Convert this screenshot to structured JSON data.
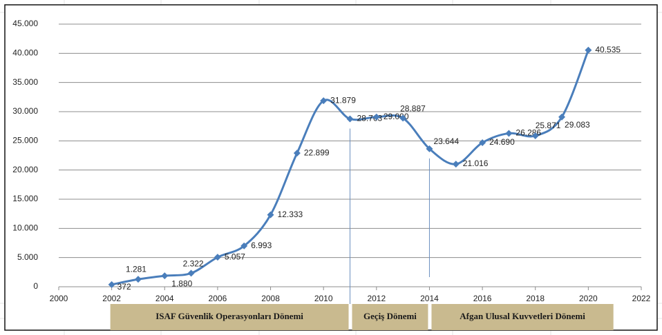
{
  "chart_data": {
    "type": "line",
    "x": [
      2002,
      2003,
      2004,
      2005,
      2006,
      2007,
      2008,
      2009,
      2010,
      2011,
      2012,
      2013,
      2014,
      2015,
      2016,
      2017,
      2018,
      2019,
      2020
    ],
    "series": [
      {
        "color": "#4a7ebb",
        "values": [
          372,
          1281,
          1880,
          2322,
          5057,
          6993,
          12333,
          22899,
          31879,
          28763,
          29090,
          28887,
          23644,
          21016,
          24690,
          26286,
          25871,
          29083,
          40535
        ],
        "value_labels": [
          "372",
          "1.281",
          "1.880",
          "2.322",
          "5.057",
          "6.993",
          "12.333",
          "22.899",
          "31.879",
          "28.763",
          "29.090",
          "28.887",
          "23.644",
          "21.016",
          "24.690",
          "26.286",
          "25.871",
          "29.083",
          "40.535"
        ]
      }
    ],
    "xlim": [
      2000,
      2022
    ],
    "xticks": [
      2000,
      2002,
      2004,
      2006,
      2008,
      2010,
      2012,
      2014,
      2016,
      2018,
      2020,
      2022
    ],
    "ylim": [
      0,
      45000
    ],
    "yticks": [
      0,
      {
        "value": 5000,
        "label": "5.000"
      },
      {
        "value": 10000,
        "label": "10.000"
      },
      {
        "value": 15000,
        "label": "15.000"
      },
      {
        "value": 20000,
        "label": "20.000"
      },
      {
        "value": 25000,
        "label": "25.000"
      },
      {
        "value": 30000,
        "label": "30.000"
      },
      {
        "value": 35000,
        "label": "35.000"
      },
      {
        "value": 40000,
        "label": "40.000"
      },
      {
        "value": 45000,
        "label": "45.000"
      }
    ],
    "grid": true,
    "periods": [
      {
        "label": "ISAF Güvenlik Operasyonları Dönemi",
        "start": 2002,
        "end": 2011
      },
      {
        "label": "Geçiş Dönemi",
        "start": 2011,
        "end": 2014
      },
      {
        "label": "Afgan Ulusal Kuvvetleri Dönemi",
        "start": 2014,
        "end": 2021
      }
    ]
  }
}
